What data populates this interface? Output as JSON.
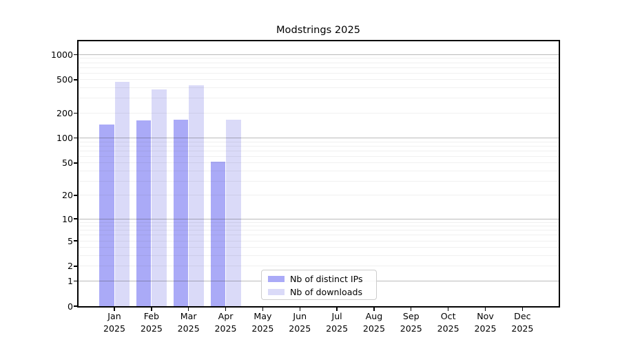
{
  "chart_data": {
    "type": "bar",
    "title": "Modstrings 2025",
    "categories": [
      "Jan",
      "Feb",
      "Mar",
      "Apr",
      "May",
      "Jun",
      "Jul",
      "Aug",
      "Sep",
      "Oct",
      "Nov",
      "Dec"
    ],
    "year_label": "2025",
    "series": [
      {
        "name": "Nb of distinct IPs",
        "color": "#aaaaf7",
        "values": [
          145,
          162,
          165,
          52,
          0,
          0,
          0,
          0,
          0,
          0,
          0,
          0
        ]
      },
      {
        "name": "Nb of downloads",
        "color": "#dadaf8",
        "values": [
          470,
          381,
          428,
          165,
          0,
          0,
          0,
          0,
          0,
          0,
          0,
          0
        ]
      }
    ],
    "yscale": "log1p",
    "ylim": [
      0,
      1440
    ],
    "y_tick_values": [
      0,
      1,
      2,
      5,
      10,
      20,
      50,
      100,
      200,
      500,
      1000
    ],
    "grid": {
      "major_values": [
        1,
        10,
        100,
        1000
      ],
      "minor_multipliers": [
        2,
        3,
        4,
        5,
        6,
        7,
        8,
        9
      ],
      "minor_decades": [
        1,
        10,
        100
      ]
    },
    "legend": {
      "position": "lower-center-inside",
      "items": [
        "Nb of distinct IPs",
        "Nb of downloads"
      ]
    },
    "xlabel": "",
    "ylabel": ""
  }
}
